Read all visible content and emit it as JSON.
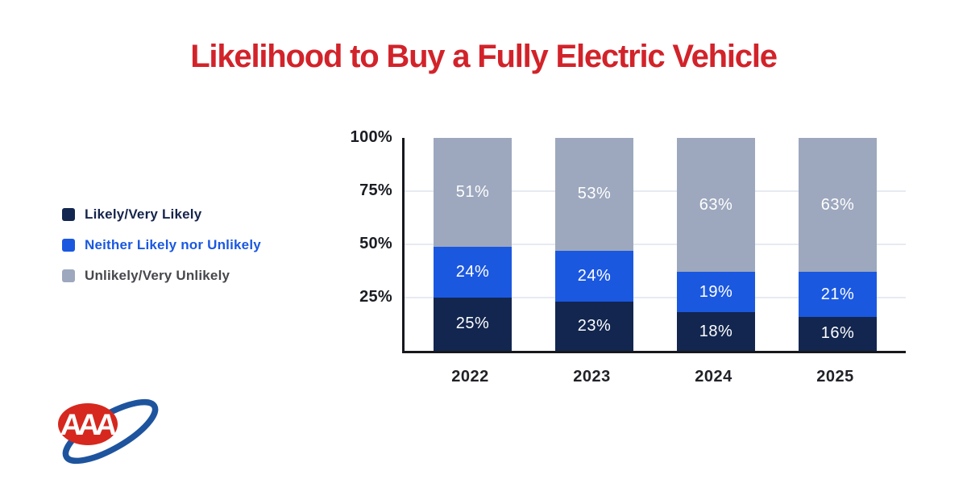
{
  "title": {
    "text": "Likelihood to Buy a Fully Electric Vehicle",
    "color": "#D2232A"
  },
  "legend": {
    "items": [
      {
        "label": "Likely/Very Likely",
        "swatch_color": "#12264F",
        "text_color": "#16254C"
      },
      {
        "label": "Neither Likely nor Unlikely",
        "swatch_color": "#1B58E0",
        "text_color": "#1B58E0"
      },
      {
        "label": "Unlikely/Very Unlikely",
        "swatch_color": "#9DA8BE",
        "text_color": "#47484D"
      }
    ]
  },
  "chart_data": {
    "type": "bar",
    "stacked": true,
    "title": "Likelihood to Buy a Fully Electric Vehicle",
    "categories": [
      "2022",
      "2023",
      "2024",
      "2025"
    ],
    "series": [
      {
        "name": "Likely/Very Likely",
        "color": "#12264F",
        "values": [
          25,
          23,
          18,
          16
        ]
      },
      {
        "name": "Neither Likely nor Unlikely",
        "color": "#1B58E0",
        "values": [
          24,
          24,
          19,
          21
        ]
      },
      {
        "name": "Unlikely/Very Unlikely",
        "color": "#9DA8BE",
        "values": [
          51,
          53,
          63,
          63
        ]
      }
    ],
    "y_ticks": [
      "100%",
      "75%",
      "50%",
      "25%"
    ],
    "ylim": [
      0,
      100
    ],
    "value_suffix": "%",
    "grid": true,
    "legend_position": "left",
    "xlabel": "",
    "ylabel": ""
  },
  "logo": {
    "name": "AAA",
    "text": "AAA",
    "oval_color": "#D6281E",
    "swoosh_color": "#1E549E"
  }
}
